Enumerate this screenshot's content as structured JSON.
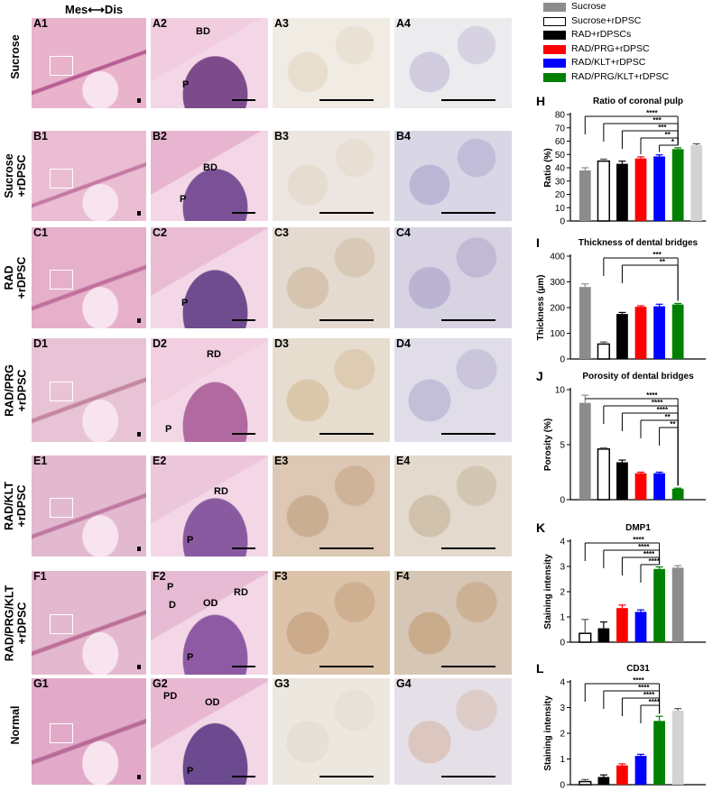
{
  "figure": {
    "orientation_label": "Mes⟷Dis",
    "row_labels": [
      "Sucrose",
      "Sucrose\n+rDPSC",
      "RAD\n+rDPSC",
      "RAD/PRG\n+rDPSC",
      "RAD/KLT\n+rDPSC",
      "RAD/PRG/KLT\n+rDPSC",
      "Normal"
    ],
    "panel_letters": [
      "A",
      "B",
      "C",
      "D",
      "E",
      "F",
      "G"
    ],
    "annotations": {
      "A2": [
        "BD",
        "P"
      ],
      "B2": [
        "BD",
        "P"
      ],
      "C2": [
        "P"
      ],
      "D2": [
        "RD",
        "P"
      ],
      "E2": [
        "RD",
        "P"
      ],
      "F2": [
        "RD",
        "P",
        "D",
        "OD",
        "P"
      ],
      "G2": [
        "PD",
        "OD",
        "P"
      ]
    }
  },
  "legend": [
    {
      "label": "Sucrose",
      "color": "#8c8c8c",
      "outline": false
    },
    {
      "label": "Sucrose+rDPSC",
      "color": "#ffffff",
      "outline": true
    },
    {
      "label": "RAD+rDPSCs",
      "color": "#000000",
      "outline": false
    },
    {
      "label": "RAD/PRG+rDPSC",
      "color": "#ff0000",
      "outline": false
    },
    {
      "label": "RAD/KLT+rDPSC",
      "color": "#0000ff",
      "outline": false
    },
    {
      "label": "RAD/PRG/KLT+rDPSC",
      "color": "#008000",
      "outline": false
    }
  ],
  "chart_data": [
    {
      "panel": "H",
      "type": "bar",
      "title": "Ratio of coronal pulp",
      "ylabel": "Ratio (%)",
      "ylim": [
        0,
        80
      ],
      "yticks": [
        0,
        10,
        20,
        30,
        40,
        50,
        60,
        70,
        80
      ],
      "values": [
        38,
        45,
        43,
        47,
        48.5,
        54,
        57
      ],
      "errors": [
        2,
        1.5,
        2,
        1.2,
        1.2,
        1,
        1
      ],
      "colors": [
        "#8c8c8c",
        "#ffffff",
        "#000000",
        "#ff0000",
        "#0000ff",
        "#008000",
        "#d3d3d3"
      ],
      "significance": [
        "****",
        "***",
        "***",
        "**",
        "*"
      ]
    },
    {
      "panel": "I",
      "type": "bar",
      "title": "Thickness of dental bridges",
      "ylabel": "Thickness (µm)",
      "ylim": [
        0,
        400
      ],
      "yticks": [
        0,
        100,
        200,
        300,
        400
      ],
      "values": [
        280,
        58,
        175,
        203,
        205,
        212
      ],
      "errors": [
        12,
        8,
        6,
        4,
        8,
        4
      ],
      "colors": [
        "#8c8c8c",
        "#ffffff",
        "#000000",
        "#ff0000",
        "#0000ff",
        "#008000"
      ],
      "significance": [
        "***",
        "**"
      ]
    },
    {
      "panel": "J",
      "type": "bar",
      "title": "Porosity of dental bridges",
      "ylabel": "Porosity (%)",
      "ylim": [
        0,
        10
      ],
      "yticks": [
        0,
        5,
        10
      ],
      "values": [
        8.8,
        4.6,
        3.4,
        2.4,
        2.4,
        1.0
      ],
      "errors": [
        0.7,
        0.1,
        0.2,
        0.1,
        0.1,
        0.05
      ],
      "colors": [
        "#8c8c8c",
        "#ffffff",
        "#000000",
        "#ff0000",
        "#0000ff",
        "#008000"
      ],
      "significance": [
        "****",
        "****",
        "****",
        "**",
        "**"
      ]
    },
    {
      "panel": "K",
      "type": "bar",
      "title": "DMP1",
      "ylabel": "Staining intensity",
      "ylim": [
        0,
        4
      ],
      "yticks": [
        0,
        1,
        2,
        3,
        4
      ],
      "values": [
        0.35,
        0.55,
        1.35,
        1.2,
        2.9,
        2.95
      ],
      "errors": [
        0.55,
        0.25,
        0.12,
        0.08,
        0.08,
        0.08
      ],
      "colors": [
        "#ffffff",
        "#000000",
        "#ff0000",
        "#0000ff",
        "#008000",
        "#8c8c8c"
      ],
      "significance": [
        "****",
        "****",
        "****",
        "****"
      ]
    },
    {
      "panel": "L",
      "type": "bar",
      "title": "CD31",
      "ylabel": "Staining intensity",
      "ylim": [
        0,
        4
      ],
      "yticks": [
        0,
        1,
        2,
        3,
        4
      ],
      "values": [
        0.12,
        0.3,
        0.75,
        1.12,
        2.48,
        2.88
      ],
      "errors": [
        0.08,
        0.08,
        0.06,
        0.06,
        0.18,
        0.08
      ],
      "colors": [
        "#ffffff",
        "#000000",
        "#ff0000",
        "#0000ff",
        "#008000",
        "#d3d3d3"
      ],
      "significance": [
        "****",
        "****",
        "****",
        "****"
      ]
    }
  ]
}
